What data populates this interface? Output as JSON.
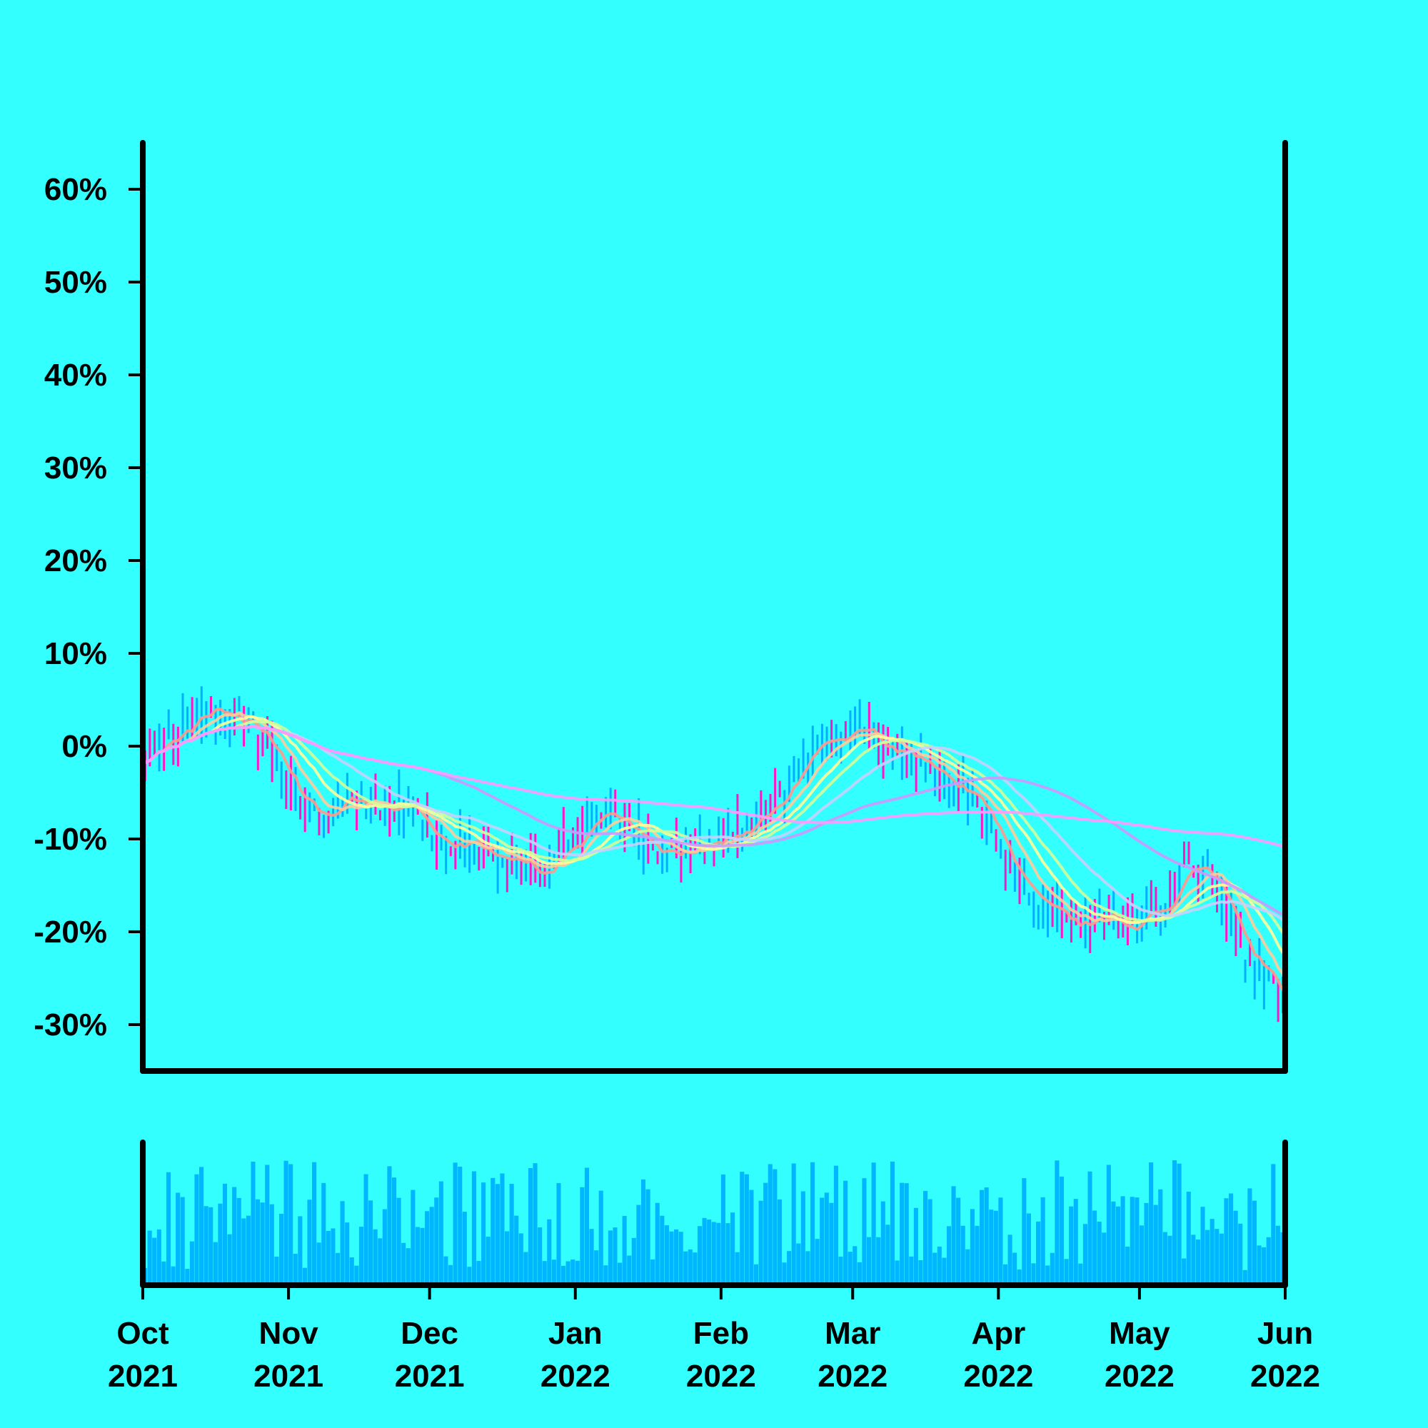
{
  "background": "#33ffff",
  "colors": {
    "axis": "#000000",
    "up_bar": "#00b0ff",
    "down_bar": "#ff14c8",
    "volume": "#00b6ff",
    "ma_lines": [
      "#ff9a8a",
      "#ffcc99",
      "#ffff99",
      "#d4ff99",
      "#c8d0ff",
      "#cc99ff",
      "#ff99ff"
    ]
  },
  "chart_data": {
    "type": "ohlc",
    "x_axis": {
      "range": [
        "2021-10-01",
        "2022-06-01"
      ],
      "ticks": [
        {
          "date": "2021-10-01",
          "line1": "Oct",
          "line2": "2021"
        },
        {
          "date": "2021-11-01",
          "line1": "Nov",
          "line2": "2021"
        },
        {
          "date": "2021-12-01",
          "line1": "Dec",
          "line2": "2021"
        },
        {
          "date": "2022-01-01",
          "line1": "Jan",
          "line2": "2022"
        },
        {
          "date": "2022-02-01",
          "line1": "Feb",
          "line2": "2022"
        },
        {
          "date": "2022-03-01",
          "line1": "Mar",
          "line2": "2022"
        },
        {
          "date": "2022-04-01",
          "line1": "Apr",
          "line2": "2022"
        },
        {
          "date": "2022-05-01",
          "line1": "May",
          "line2": "2022"
        },
        {
          "date": "2022-06-01",
          "line1": "Jun",
          "line2": "2022"
        }
      ]
    },
    "y_axis": {
      "unit": "%",
      "range": [
        -35,
        65
      ],
      "ticks": [
        "60%",
        "50%",
        "40%",
        "30%",
        "20%",
        "10%",
        "0%",
        "-10%",
        "-20%",
        "-30%"
      ],
      "tick_values": [
        60,
        50,
        40,
        30,
        20,
        10,
        0,
        -10,
        -20,
        -30
      ]
    },
    "price_path": [
      [
        "2021-10-01",
        -1
      ],
      [
        "2021-10-05",
        1.5
      ],
      [
        "2021-10-10",
        2
      ],
      [
        "2021-10-17",
        3
      ],
      [
        "2021-10-24",
        2
      ],
      [
        "2021-11-01",
        -4
      ],
      [
        "2021-11-07",
        -9
      ],
      [
        "2021-11-12",
        -6
      ],
      [
        "2021-11-20",
        -7
      ],
      [
        "2021-11-26",
        -6.5
      ],
      [
        "2021-12-05",
        -10.5
      ],
      [
        "2021-12-12",
        -11.5
      ],
      [
        "2021-12-18",
        -12.5
      ],
      [
        "2021-12-24",
        -13
      ],
      [
        "2021-12-31",
        -9.5
      ],
      [
        "2022-01-06",
        -7.5
      ],
      [
        "2022-01-13",
        -9
      ],
      [
        "2022-01-19",
        -12
      ],
      [
        "2022-01-25",
        -11.5
      ],
      [
        "2022-02-02",
        -9.5
      ],
      [
        "2022-02-10",
        -7
      ],
      [
        "2022-02-17",
        -3
      ],
      [
        "2022-02-21",
        0.5
      ],
      [
        "2022-02-28",
        1.5
      ],
      [
        "2022-03-07",
        0.5
      ],
      [
        "2022-03-14",
        -2
      ],
      [
        "2022-03-21",
        -4
      ],
      [
        "2022-03-27",
        -6
      ],
      [
        "2022-04-02",
        -12
      ],
      [
        "2022-04-08",
        -17
      ],
      [
        "2022-04-14",
        -18.5
      ],
      [
        "2022-04-22",
        -18.5
      ],
      [
        "2022-04-30",
        -19
      ],
      [
        "2022-05-06",
        -17
      ],
      [
        "2022-05-11",
        -11.5
      ],
      [
        "2022-05-17",
        -15
      ],
      [
        "2022-05-24",
        -23
      ],
      [
        "2022-05-29",
        -26.5
      ],
      [
        "2022-06-01",
        -27.5
      ]
    ],
    "moving_average_windows": [
      5,
      10,
      15,
      20,
      30,
      60,
      120
    ],
    "volume_range": [
      0,
      100
    ]
  }
}
